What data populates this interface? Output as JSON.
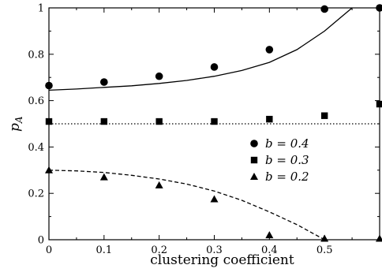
{
  "chart_data": {
    "type": "scatter",
    "xlabel": "clustering coefficient",
    "ylabel_main": "p",
    "ylabel_sub": "A",
    "xlim": [
      0,
      0.6
    ],
    "ylim": [
      0,
      1
    ],
    "x_ticks": [
      0,
      0.1,
      0.2,
      0.3,
      0.4,
      0.5
    ],
    "x_tick_labels": [
      "0",
      "0.1",
      "0.2",
      "0.3",
      "0.4",
      "0.5"
    ],
    "y_ticks": [
      0,
      0.2,
      0.4,
      0.6,
      0.8,
      1
    ],
    "y_tick_labels": [
      "0",
      "0.2",
      "0.4",
      "0.6",
      "0.8",
      "1"
    ],
    "grid": false,
    "legend_position": "right",
    "series": [
      {
        "name": "b = 0.4",
        "marker": "circle",
        "x": [
          0,
          0.1,
          0.2,
          0.3,
          0.4,
          0.5,
          0.6
        ],
        "y": [
          0.665,
          0.68,
          0.705,
          0.745,
          0.82,
          0.995,
          1.0
        ]
      },
      {
        "name": "b = 0.3",
        "marker": "square",
        "x": [
          0,
          0.1,
          0.2,
          0.3,
          0.4,
          0.5,
          0.6
        ],
        "y": [
          0.51,
          0.51,
          0.51,
          0.51,
          0.52,
          0.535,
          0.585
        ]
      },
      {
        "name": "b = 0.2",
        "marker": "triangle",
        "x": [
          0,
          0.1,
          0.2,
          0.3,
          0.4,
          0.5,
          0.6
        ],
        "y": [
          0.3,
          0.27,
          0.235,
          0.175,
          0.02,
          0.005,
          0.005
        ]
      }
    ],
    "reference_lines": [
      {
        "style": "solid",
        "x": [
          0,
          0.05,
          0.1,
          0.15,
          0.2,
          0.25,
          0.3,
          0.35,
          0.4,
          0.45,
          0.5,
          0.53,
          0.55
        ],
        "y": [
          0.645,
          0.65,
          0.657,
          0.664,
          0.674,
          0.687,
          0.705,
          0.73,
          0.765,
          0.82,
          0.9,
          0.96,
          1.0
        ]
      },
      {
        "style": "dotted",
        "x": [
          0,
          0.6
        ],
        "y": [
          0.5,
          0.5
        ]
      },
      {
        "style": "dashed",
        "x": [
          0,
          0.05,
          0.1,
          0.15,
          0.2,
          0.25,
          0.3,
          0.35,
          0.4,
          0.45,
          0.5
        ],
        "y": [
          0.3,
          0.297,
          0.29,
          0.278,
          0.262,
          0.24,
          0.21,
          0.17,
          0.12,
          0.065,
          0.0
        ]
      }
    ]
  }
}
